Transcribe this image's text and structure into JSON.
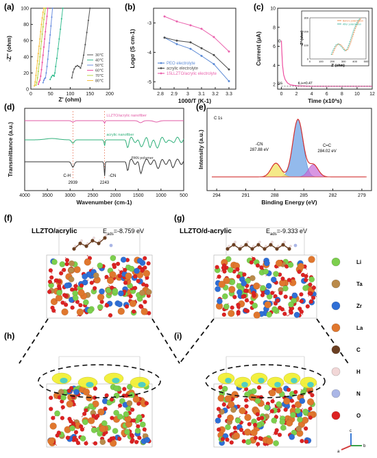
{
  "colors": {
    "li": "#7ccf4d",
    "ta": "#b98a4a",
    "zr": "#2f6fd6",
    "la": "#e0772e",
    "c": "#6b3f22",
    "h": "#f2d7d7",
    "n": "#aab6e6",
    "o": "#dd2222",
    "isosurface": "#f1ee2a",
    "isosurface2": "#35c9d9"
  },
  "panel_labels": {
    "a": "(a)",
    "b": "(b)",
    "c": "(c)",
    "d": "(d)",
    "e": "(e)",
    "f": "(f)",
    "g": "(g)",
    "h": "(h)",
    "i": "(i)"
  },
  "panel_f": {
    "title": "LLZTO/acrylic",
    "energy_prefix": "E",
    "energy_sub": "ads",
    "energy_value": "=-8.759 eV"
  },
  "panel_g": {
    "title": "LLZTO/d-acrylic",
    "energy_prefix": "E",
    "energy_sub": "ads",
    "energy_value": "=-9.333 eV"
  },
  "element_legend": [
    {
      "symbol": "Li",
      "color": "#7ccf4d"
    },
    {
      "symbol": "Ta",
      "color": "#b98a4a"
    },
    {
      "symbol": "Zr",
      "color": "#2f6fd6"
    },
    {
      "symbol": "La",
      "color": "#e0772e"
    },
    {
      "symbol": "C",
      "color": "#6b3f22"
    },
    {
      "symbol": "H",
      "color": "#f2d7d7"
    },
    {
      "symbol": "N",
      "color": "#aab6e6"
    },
    {
      "symbol": "O",
      "color": "#dd2222"
    }
  ],
  "axes_triad": {
    "a": "a",
    "b": "b",
    "c": "c"
  },
  "chart_data": [
    {
      "id": "a",
      "type": "line",
      "xlabel": "Z' (ohm)",
      "ylabel": "-Z'' (ohm)",
      "xlim": [
        0,
        200
      ],
      "ylim": [
        0,
        100
      ],
      "xticks": [
        0,
        50,
        100,
        150,
        200
      ],
      "yticks": [
        0,
        20,
        40,
        60,
        80,
        100
      ],
      "legend_position": "lower-right",
      "series": [
        {
          "name": "30℃",
          "color": "#555555",
          "x": [
            104,
            107,
            110,
            114,
            118,
            122,
            126,
            130,
            134,
            138,
            142,
            146,
            150
          ],
          "y": [
            14,
            21,
            25,
            28,
            29,
            28,
            26,
            32,
            42,
            55,
            70,
            85,
            100
          ]
        },
        {
          "name": "40℃",
          "color": "#3bbf93",
          "x": [
            49,
            52,
            55,
            57,
            59,
            61,
            63,
            66,
            69,
            72,
            75,
            78,
            81
          ],
          "y": [
            12,
            15,
            17,
            17,
            16,
            20,
            28,
            38,
            50,
            62,
            74,
            87,
            100
          ]
        },
        {
          "name": "50℃",
          "color": "#6b8fe0",
          "x": [
            31,
            33,
            35,
            37,
            39,
            41,
            43,
            45,
            47,
            49,
            51,
            53,
            55
          ],
          "y": [
            8,
            11,
            13,
            14,
            20,
            28,
            37,
            47,
            57,
            67,
            78,
            89,
            100
          ]
        },
        {
          "name": "60℃",
          "color": "#ee4d9f",
          "x": [
            19,
            21,
            23,
            25,
            27,
            29,
            31,
            33,
            35,
            37,
            39,
            41,
            43
          ],
          "y": [
            6,
            9,
            11,
            16,
            24,
            33,
            42,
            52,
            62,
            71,
            81,
            90,
            100
          ]
        },
        {
          "name": "70℃",
          "color": "#b9d646",
          "x": [
            13,
            15,
            17,
            19,
            21,
            23,
            25,
            27,
            29,
            31,
            33,
            35,
            37
          ],
          "y": [
            5,
            8,
            14,
            22,
            31,
            40,
            50,
            59,
            68,
            77,
            86,
            93,
            100
          ]
        },
        {
          "name": "80℃",
          "color": "#f5c040",
          "x": [
            9,
            11,
            13,
            15,
            17,
            19,
            21,
            23,
            25,
            27,
            29,
            31,
            33
          ],
          "y": [
            4,
            9,
            17,
            26,
            35,
            44,
            53,
            62,
            71,
            80,
            88,
            95,
            100
          ]
        }
      ]
    },
    {
      "id": "b",
      "type": "line",
      "xlabel": "1000/T (K-1)",
      "ylabel": "Logσ (S cm-1)",
      "xlim": [
        2.75,
        3.35
      ],
      "ylim": [
        -5.25,
        -2.5
      ],
      "xticks": [
        2.8,
        2.9,
        3.0,
        3.1,
        3.2,
        3.3
      ],
      "yticks": [
        -3,
        -4,
        -5
      ],
      "legend_position": "bottom-left",
      "series": [
        {
          "name": "PEO electrolyte",
          "color": "#5b8ad6",
          "x": [
            2.83,
            2.92,
            3.02,
            3.1,
            3.19,
            3.3
          ],
          "y": [
            -3.5,
            -3.72,
            -3.88,
            -4.12,
            -4.4,
            -4.98
          ]
        },
        {
          "name": "acrylic electrolyte",
          "color": "#4b4b4b",
          "x": [
            2.83,
            2.92,
            3.02,
            3.1,
            3.19,
            3.3
          ],
          "y": [
            -3.5,
            -3.6,
            -3.66,
            -3.86,
            -4.09,
            -4.58
          ]
        },
        {
          "name": "15LLZTO/acrylic electrolyte",
          "color": "#ea62ad",
          "x": [
            2.83,
            2.92,
            3.02,
            3.1,
            3.19,
            3.3
          ],
          "y": [
            -2.78,
            -2.95,
            -3.08,
            -3.2,
            -3.48,
            -3.97
          ]
        }
      ]
    },
    {
      "id": "c",
      "type": "line",
      "xlabel": "Time (x10³s)",
      "ylabel": "Current (μA)",
      "xlim": [
        -0.5,
        12
      ],
      "ylim": [
        1.5,
        10
      ],
      "xticks": [
        0,
        2,
        4,
        6,
        8,
        10,
        12
      ],
      "yticks": [
        2,
        4,
        6,
        8,
        10
      ],
      "annotations": [
        "I0",
        "Iss",
        "tLi+=0.47"
      ],
      "series": [
        {
          "name": "current",
          "color": "#ee4d9f",
          "x": [
            0,
            0.05,
            0.15,
            0.3,
            0.5,
            0.8,
            1.2,
            2,
            4,
            6,
            8,
            10,
            12
          ],
          "y": [
            6.6,
            5.6,
            4.0,
            3.0,
            2.5,
            2.15,
            1.95,
            1.85,
            1.8,
            1.8,
            1.8,
            1.8,
            1.8
          ]
        }
      ],
      "inset": {
        "xlabel": "Z' (ohm)",
        "ylabel": "-Z'' (ohm)",
        "xlim": [
          0,
          500
        ],
        "ylim": [
          0,
          300
        ],
        "xticks": [
          0,
          100,
          200,
          300,
          400,
          500
        ],
        "yticks": [
          0,
          100,
          200,
          300
        ],
        "legend": [
          "Before polarization",
          "After polarization"
        ],
        "series": [
          {
            "name": "Before polarization",
            "color": "#f07f3b",
            "x": [
              200,
              220,
              240,
              260,
              280,
              300,
              320,
              340,
              360,
              380,
              400,
              420,
              440,
              460
            ],
            "y": [
              30,
              70,
              100,
              110,
              100,
              80,
              60,
              70,
              110,
              160,
              210,
              250,
              280,
              300
            ]
          },
          {
            "name": "After polarization",
            "color": "#36b39a",
            "x": [
              190,
              210,
              230,
              250,
              270,
              290,
              310,
              330,
              350,
              370,
              390,
              410,
              430,
              450
            ],
            "y": [
              30,
              70,
              100,
              110,
              100,
              80,
              60,
              70,
              110,
              160,
              210,
              250,
              280,
              300
            ]
          }
        ]
      }
    },
    {
      "id": "d",
      "type": "line",
      "xlabel": "Wavenumber (cm-1)",
      "ylabel": "Transmittance (a.u.)",
      "xlim": [
        4000,
        500
      ],
      "xticks": [
        4000,
        3500,
        3000,
        2500,
        2000,
        1500,
        1000,
        500
      ],
      "annotations": [
        "C-H",
        "2939",
        "2243",
        "-CN"
      ],
      "series": [
        {
          "name": "LLZTO/acrylic nanofiber",
          "color": "#e25aa6"
        },
        {
          "name": "acrylic nanofiber",
          "color": "#2fb07a"
        },
        {
          "name": "PAN polymer",
          "color": "#333333"
        }
      ]
    },
    {
      "id": "e",
      "type": "area",
      "xlabel": "Binding Energy (eV)",
      "ylabel": "Intensity (a.u.)",
      "xlim": [
        295,
        278
      ],
      "xticks": [
        294,
        291,
        288,
        285,
        282,
        279
      ],
      "title": "C 1s",
      "annotations": [
        {
          "label": "-CN",
          "value": "287.88 eV"
        },
        {
          "label": "C=C",
          "value": "284.02 eV"
        }
      ],
      "peaks": [
        {
          "name": "main",
          "center": 285.6,
          "color": "#6fa3e6"
        },
        {
          "name": "-CN",
          "center": 287.88,
          "color": "#f3e36a"
        },
        {
          "name": "C=C",
          "center": 284.02,
          "color": "#c86ad6"
        }
      ]
    }
  ]
}
